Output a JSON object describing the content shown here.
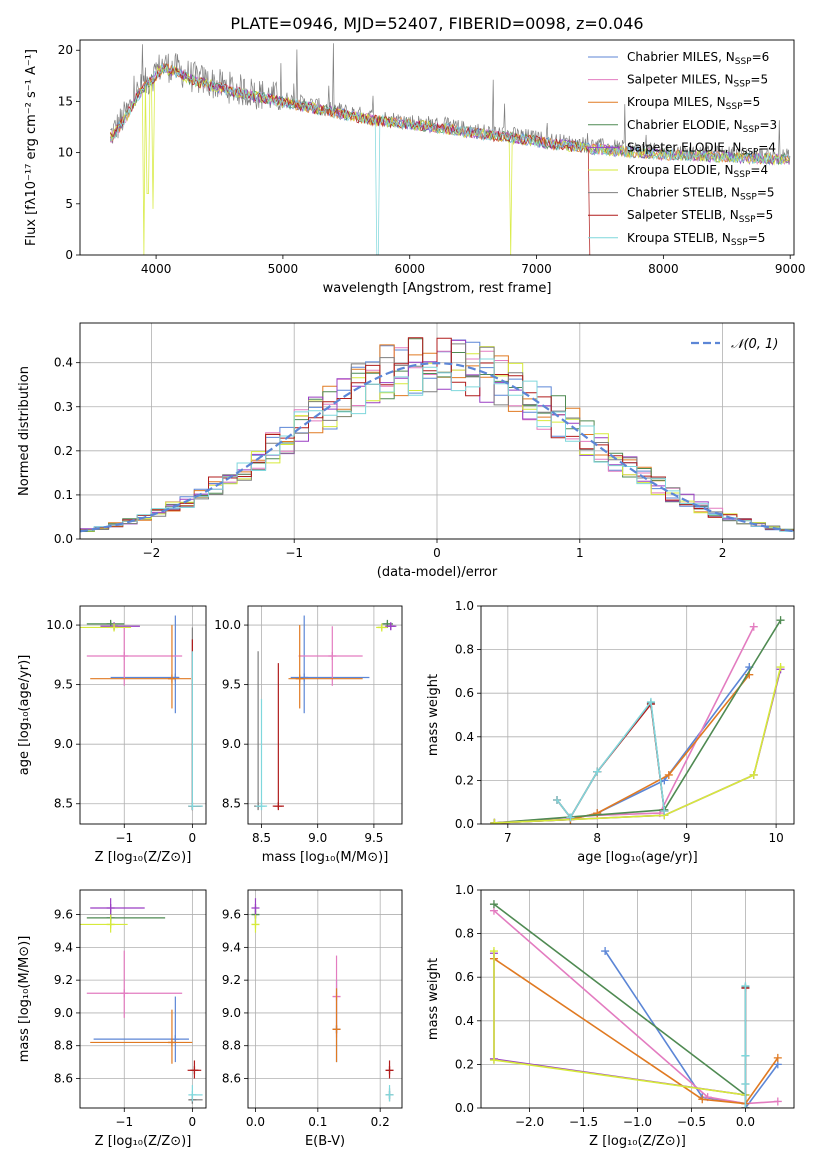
{
  "figure_title": "PLATE=0946, MJD=52407, FIBERID=0098, z=0.046",
  "colors": {
    "chabrier_miles": "#5c86d6",
    "salpeter_miles": "#e37cc0",
    "kroupa_miles": "#e07a22",
    "chabrier_elodie": "#4f8a52",
    "salpeter_elodie": "#9a3fc4",
    "kroupa_elodie": "#d6ea3a",
    "chabrier_stelib": "#7f7f7f",
    "salpeter_stelib": "#b01c1c",
    "kroupa_stelib": "#7fd7dc",
    "gauss": "#5c86d6",
    "grid": "#b0b0b0"
  },
  "chart_data": [
    {
      "id": "spectrum",
      "type": "line",
      "xlabel": "wavelength [Angstrom, rest frame]",
      "ylabel": "Flux [fλ10⁻¹⁷ erg cm⁻² s⁻¹ A⁻¹]",
      "xlim": [
        3400,
        9030
      ],
      "ylim": [
        0,
        21
      ],
      "xticks": [
        4000,
        5000,
        6000,
        7000,
        8000,
        9000
      ],
      "yticks": [
        0,
        5,
        10,
        15,
        20
      ],
      "grid": false,
      "legend_position": "top-right",
      "legend": [
        {
          "label": "Chabrier MILES, N",
          "sub": "SSP",
          "eq": "=6"
        },
        {
          "label": "Salpeter MILES, N",
          "sub": "SSP",
          "eq": "=5"
        },
        {
          "label": "Kroupa MILES, N",
          "sub": "SSP",
          "eq": "=5"
        },
        {
          "label": "Chabrier ELODIE, N",
          "sub": "SSP",
          "eq": "=3"
        },
        {
          "label": "Salpeter ELODIE, N",
          "sub": "SSP",
          "eq": "=4"
        },
        {
          "label": "Kroupa ELODIE, N",
          "sub": "SSP",
          "eq": "=4"
        },
        {
          "label": "Chabrier STELIB, N",
          "sub": "SSP",
          "eq": "=5"
        },
        {
          "label": "Salpeter STELIB, N",
          "sub": "SSP",
          "eq": "=5"
        },
        {
          "label": "Kroupa STELIB, N",
          "sub": "SSP",
          "eq": "=5"
        }
      ],
      "envelope": [
        [
          3650,
          11.8
        ],
        [
          3750,
          13.5
        ],
        [
          3850,
          15.8
        ],
        [
          3950,
          17.2
        ],
        [
          4050,
          18.6
        ],
        [
          4150,
          18.2
        ],
        [
          4300,
          17.3
        ],
        [
          4500,
          16.6
        ],
        [
          4700,
          16.0
        ],
        [
          4900,
          15.5
        ],
        [
          5100,
          15.0
        ],
        [
          5300,
          14.5
        ],
        [
          5500,
          14.0
        ],
        [
          5700,
          13.5
        ],
        [
          5900,
          13.2
        ],
        [
          6100,
          12.9
        ],
        [
          6300,
          12.6
        ],
        [
          6500,
          12.2
        ],
        [
          6700,
          11.9
        ],
        [
          6900,
          11.6
        ],
        [
          7100,
          11.2
        ],
        [
          7300,
          10.9
        ],
        [
          7420,
          10.7
        ],
        [
          7600,
          10.5
        ],
        [
          7800,
          10.3
        ],
        [
          8000,
          10.1
        ],
        [
          8200,
          10.0
        ],
        [
          8400,
          9.9
        ],
        [
          8600,
          9.8
        ],
        [
          8800,
          9.7
        ],
        [
          9000,
          9.6
        ]
      ],
      "dips": [
        {
          "series": "kroupa_elodie",
          "at": 3905,
          "to": 0
        },
        {
          "series": "kroupa_elodie",
          "at": 3935,
          "to": 6
        },
        {
          "series": "kroupa_elodie",
          "at": 3975,
          "to": 4.5
        },
        {
          "series": "kroupa_stelib",
          "at": 5745,
          "to": 0
        },
        {
          "series": "kroupa_elodie",
          "at": 6795,
          "to": 0
        },
        {
          "series": "salpeter_stelib",
          "at": 7420,
          "to": 0
        }
      ]
    },
    {
      "id": "residuals",
      "type": "step",
      "xlabel": "(data-model)/error",
      "ylabel": "Normed distribution",
      "xlim": [
        -2.5,
        2.5
      ],
      "ylim": [
        0,
        0.49
      ],
      "xticks": [
        -2,
        -1,
        0,
        1,
        2
      ],
      "yticks": [
        0.0,
        0.1,
        0.2,
        0.3,
        0.4
      ],
      "grid": true,
      "legend_position": "top-right",
      "legend_label": "𝒩(0, 1)",
      "bin_width": 0.1
    },
    {
      "id": "age_vs_Z",
      "type": "errorbar",
      "xlabel": "Z [log₁₀(Z/Z⊙)]",
      "ylabel": "age  [log₁₀(age/yr)]",
      "xlim": [
        -1.65,
        0.2
      ],
      "ylim": [
        8.33,
        10.16
      ],
      "xticks": [
        -1,
        0
      ],
      "yticks": [
        8.5,
        9.0,
        9.5,
        10.0
      ],
      "grid": true,
      "points": [
        {
          "s": "chabrier_miles",
          "x": -0.25,
          "y": 9.56,
          "xl": 0.95,
          "xh": 0.05,
          "yl": 0.3,
          "yh": 0.52
        },
        {
          "s": "salpeter_miles",
          "x": -1.0,
          "y": 9.74,
          "xl": 0.55,
          "xh": 0.85,
          "yl": 0.25,
          "yh": 0.25
        },
        {
          "s": "kroupa_miles",
          "x": -0.3,
          "y": 9.55,
          "xl": 1.2,
          "xh": 0.28,
          "yl": 0.25,
          "yh": 0.45
        },
        {
          "s": "chabrier_elodie",
          "x": -1.2,
          "y": 10.01,
          "xl": 0.35,
          "xh": 0.2,
          "yl": 0.02,
          "yh": 0.02
        },
        {
          "s": "salpeter_elodie",
          "x": -1.15,
          "y": 9.99,
          "xl": 0.2,
          "xh": 0.38,
          "yl": 0.03,
          "yh": 0.03
        },
        {
          "s": "kroupa_elodie",
          "x": -1.15,
          "y": 9.98,
          "xl": 0.5,
          "xh": 0.25,
          "yl": 0.02,
          "yh": 0.02
        },
        {
          "s": "chabrier_stelib",
          "x": 0.0,
          "y": 8.48,
          "xl": 0.02,
          "xh": 0.15,
          "yl": 0.02,
          "yh": 1.5
        },
        {
          "s": "salpeter_stelib",
          "x": 0.0,
          "y": 8.48,
          "xl": 0.02,
          "xh": 0.12,
          "yl": 0.02,
          "yh": 1.4
        },
        {
          "s": "kroupa_stelib",
          "x": 0.0,
          "y": 8.48,
          "xl": 0.02,
          "xh": 0.15,
          "yl": 0.01,
          "yh": 1.3
        }
      ]
    },
    {
      "id": "age_vs_mass",
      "type": "errorbar",
      "xlabel": "mass [log₁₀(M/M⊙)]",
      "ylabel": "",
      "xlim": [
        8.38,
        9.75
      ],
      "ylim": [
        8.33,
        10.16
      ],
      "xticks": [
        8.5,
        9.0,
        9.5
      ],
      "yticks": [
        8.5,
        9.0,
        9.5,
        10.0
      ],
      "grid": true,
      "points": [
        {
          "s": "chabrier_miles",
          "x": 8.88,
          "y": 9.56,
          "xl": 0.12,
          "xh": 0.58,
          "yl": 0.3,
          "yh": 0.52
        },
        {
          "s": "salpeter_miles",
          "x": 9.13,
          "y": 9.74,
          "xl": 0.3,
          "xh": 0.27,
          "yl": 0.25,
          "yh": 0.25
        },
        {
          "s": "kroupa_miles",
          "x": 8.84,
          "y": 9.55,
          "xl": 0.1,
          "xh": 0.56,
          "yl": 0.25,
          "yh": 0.45
        },
        {
          "s": "chabrier_elodie",
          "x": 9.62,
          "y": 10.01,
          "xl": 0.05,
          "xh": 0.05,
          "yl": 0.02,
          "yh": 0.02
        },
        {
          "s": "salpeter_elodie",
          "x": 9.65,
          "y": 9.99,
          "xl": 0.05,
          "xh": 0.05,
          "yl": 0.03,
          "yh": 0.03
        },
        {
          "s": "kroupa_elodie",
          "x": 9.57,
          "y": 9.98,
          "xl": 0.05,
          "xh": 0.05,
          "yl": 0.02,
          "yh": 0.02
        },
        {
          "s": "chabrier_stelib",
          "x": 8.47,
          "y": 8.48,
          "xl": 0.02,
          "xh": 0.02,
          "yl": 0.02,
          "yh": 1.3
        },
        {
          "s": "salpeter_stelib",
          "x": 8.65,
          "y": 8.48,
          "xl": 0.05,
          "xh": 0.05,
          "yl": 0.02,
          "yh": 1.2
        },
        {
          "s": "kroupa_stelib",
          "x": 8.5,
          "y": 8.48,
          "xl": 0.05,
          "xh": 0.05,
          "yl": 0.01,
          "yh": 0.9
        }
      ]
    },
    {
      "id": "weight_vs_age",
      "type": "line",
      "xlabel": "age  [log₁₀(age/yr)]",
      "ylabel": "mass weight",
      "xlim": [
        6.7,
        10.2
      ],
      "ylim": [
        0,
        1.0
      ],
      "xticks": [
        7,
        8,
        9,
        10
      ],
      "yticks": [
        0.0,
        0.2,
        0.4,
        0.6,
        0.8,
        1.0
      ],
      "grid": true,
      "series": [
        {
          "s": "chabrier_miles",
          "x": [
            6.85,
            7.7,
            8.0,
            8.75,
            9.7
          ],
          "y": [
            0.005,
            0.02,
            0.05,
            0.2,
            0.72
          ]
        },
        {
          "s": "salpeter_miles",
          "x": [
            6.85,
            8.0,
            8.7,
            9.75
          ],
          "y": [
            0.005,
            0.04,
            0.05,
            0.905
          ]
        },
        {
          "s": "kroupa_miles",
          "x": [
            6.85,
            7.7,
            8.0,
            8.8,
            9.7
          ],
          "y": [
            0.005,
            0.02,
            0.05,
            0.225,
            0.685
          ]
        },
        {
          "s": "chabrier_elodie",
          "x": [
            6.85,
            8.75,
            10.05
          ],
          "y": [
            0.005,
            0.065,
            0.935
          ]
        },
        {
          "s": "salpeter_elodie",
          "x": [
            6.85,
            8.75,
            9.75,
            10.05
          ],
          "y": [
            0.005,
            0.04,
            0.225,
            0.71
          ]
        },
        {
          "s": "kroupa_elodie",
          "x": [
            6.85,
            8.75,
            9.75,
            10.05
          ],
          "y": [
            0.005,
            0.04,
            0.225,
            0.72
          ]
        },
        {
          "s": "chabrier_stelib",
          "x": [
            7.55,
            7.7,
            8.0,
            8.6,
            8.75
          ],
          "y": [
            0.11,
            0.03,
            0.24,
            0.555,
            0.06
          ]
        },
        {
          "s": "salpeter_stelib",
          "x": [
            7.55,
            7.7,
            8.0,
            8.6,
            8.75
          ],
          "y": [
            0.11,
            0.03,
            0.24,
            0.55,
            0.06
          ]
        },
        {
          "s": "kroupa_stelib",
          "x": [
            7.55,
            7.7,
            8.0,
            8.6,
            8.75
          ],
          "y": [
            0.11,
            0.03,
            0.24,
            0.56,
            0.06
          ]
        }
      ]
    },
    {
      "id": "mass_vs_Z",
      "type": "errorbar",
      "xlabel": "Z [log₁₀(Z/Z⊙)]",
      "ylabel": "mass [log₁₀(M/M⊙)]",
      "xlim": [
        -1.65,
        0.2
      ],
      "ylim": [
        8.42,
        9.75
      ],
      "xticks": [
        -1,
        0
      ],
      "yticks": [
        8.6,
        8.8,
        9.0,
        9.2,
        9.4,
        9.6
      ],
      "grid": true,
      "points": [
        {
          "s": "chabrier_miles",
          "x": -0.25,
          "y": 8.84,
          "xl": 1.2,
          "xh": 0.2,
          "yl": 0.14,
          "yh": 0.26
        },
        {
          "s": "salpeter_miles",
          "x": -1.0,
          "y": 9.12,
          "xl": 0.55,
          "xh": 0.85,
          "yl": 0.15,
          "yh": 0.26
        },
        {
          "s": "kroupa_miles",
          "x": -0.3,
          "y": 8.82,
          "xl": 1.2,
          "xh": 0.3,
          "yl": 0.13,
          "yh": 0.2
        },
        {
          "s": "chabrier_elodie",
          "x": -1.2,
          "y": 9.58,
          "xl": 0.35,
          "xh": 0.8,
          "yl": 0.05,
          "yh": 0.05
        },
        {
          "s": "salpeter_elodie",
          "x": -1.2,
          "y": 9.64,
          "xl": 0.3,
          "xh": 0.5,
          "yl": 0.06,
          "yh": 0.06
        },
        {
          "s": "kroupa_elodie",
          "x": -1.2,
          "y": 9.54,
          "xl": 0.5,
          "xh": 0.25,
          "yl": 0.05,
          "yh": 0.06
        },
        {
          "s": "chabrier_stelib",
          "x": 0.0,
          "y": 8.47,
          "xl": 0.02,
          "xh": 0.15,
          "yl": 0.01,
          "yh": 0.02
        },
        {
          "s": "salpeter_stelib",
          "x": 0.03,
          "y": 8.65,
          "xl": 0.1,
          "xh": 0.1,
          "yl": 0.05,
          "yh": 0.06
        },
        {
          "s": "kroupa_stelib",
          "x": 0.0,
          "y": 8.5,
          "xl": 0.02,
          "xh": 0.15,
          "yl": 0.04,
          "yh": 0.06
        }
      ]
    },
    {
      "id": "mass_vs_ebv",
      "type": "errorbar",
      "xlabel": "E(B-V)",
      "ylabel": "",
      "xlim": [
        -0.012,
        0.235
      ],
      "ylim": [
        8.42,
        9.75
      ],
      "xticks": [
        0.0,
        0.1,
        0.2
      ],
      "yticks": [
        8.6,
        8.8,
        9.0,
        9.2,
        9.4,
        9.6
      ],
      "grid": true,
      "points": [
        {
          "s": "chabrier_miles",
          "x": 0.13,
          "y": 8.9,
          "xl": 0.0,
          "xh": 0.0,
          "yl": 0.2,
          "yh": 0.3
        },
        {
          "s": "salpeter_miles",
          "x": 0.13,
          "y": 9.1,
          "xl": 0.0,
          "xh": 0.0,
          "yl": 0.25,
          "yh": 0.25
        },
        {
          "s": "kroupa_miles",
          "x": 0.13,
          "y": 8.9,
          "xl": 0.0,
          "xh": 0.0,
          "yl": 0.2,
          "yh": 0.25
        },
        {
          "s": "chabrier_elodie",
          "x": 0.0,
          "y": 9.6,
          "xl": 0.0,
          "xh": 0.0,
          "yl": 0.05,
          "yh": 0.05
        },
        {
          "s": "salpeter_elodie",
          "x": 0.0,
          "y": 9.64,
          "xl": 0.0,
          "xh": 0.0,
          "yl": 0.06,
          "yh": 0.06
        },
        {
          "s": "kroupa_elodie",
          "x": 0.0,
          "y": 9.54,
          "xl": 0.0,
          "xh": 0.0,
          "yl": 0.05,
          "yh": 0.06
        },
        {
          "s": "chabrier_stelib",
          "x": 0.215,
          "y": 8.5,
          "xl": 0.0,
          "xh": 0.0,
          "yl": 0.04,
          "yh": 0.04
        },
        {
          "s": "salpeter_stelib",
          "x": 0.215,
          "y": 8.65,
          "xl": 0.0,
          "xh": 0.0,
          "yl": 0.05,
          "yh": 0.06
        },
        {
          "s": "kroupa_stelib",
          "x": 0.215,
          "y": 8.5,
          "xl": 0.0,
          "xh": 0.0,
          "yl": 0.04,
          "yh": 0.06
        }
      ]
    },
    {
      "id": "weight_vs_Z",
      "type": "line",
      "xlabel": "Z [log₁₀(Z/Z⊙)]",
      "ylabel": "mass weight",
      "xlim": [
        -2.45,
        0.45
      ],
      "ylim": [
        0,
        1.0
      ],
      "xticks": [
        -2.0,
        -1.5,
        -1.0,
        -0.5,
        0.0
      ],
      "yticks": [
        0.0,
        0.2,
        0.4,
        0.6,
        0.8,
        1.0
      ],
      "grid": true,
      "series": [
        {
          "s": "chabrier_miles",
          "x": [
            -1.3,
            -0.4,
            0.0,
            0.0,
            0.3
          ],
          "y": [
            0.72,
            0.05,
            0.02,
            0.0,
            0.2
          ]
        },
        {
          "s": "salpeter_miles",
          "x": [
            -2.33,
            -0.35,
            0.0,
            0.3
          ],
          "y": [
            0.905,
            0.05,
            0.02,
            0.03
          ]
        },
        {
          "s": "kroupa_miles",
          "x": [
            -2.33,
            -0.4,
            0.0,
            0.3
          ],
          "y": [
            0.685,
            0.04,
            0.02,
            0.23
          ]
        },
        {
          "s": "chabrier_elodie",
          "x": [
            -2.33,
            0.0,
            0.0
          ],
          "y": [
            0.935,
            0.06,
            0.0
          ]
        },
        {
          "s": "salpeter_elodie",
          "x": [
            -2.33,
            -2.33,
            0.0,
            0.0
          ],
          "y": [
            0.71,
            0.225,
            0.06,
            0.0
          ]
        },
        {
          "s": "kroupa_elodie",
          "x": [
            -2.33,
            -2.33,
            0.0,
            0.0
          ],
          "y": [
            0.72,
            0.22,
            0.06,
            0.0
          ]
        },
        {
          "s": "chabrier_stelib",
          "x": [
            0.0,
            0.0,
            0.0,
            0.0
          ],
          "y": [
            0.0,
            0.555,
            0.24,
            0.11
          ]
        },
        {
          "s": "salpeter_stelib",
          "x": [
            0.0,
            0.0
          ],
          "y": [
            0.0,
            0.55
          ]
        },
        {
          "s": "kroupa_stelib",
          "x": [
            0.0,
            0.0,
            0.0,
            0.0
          ],
          "y": [
            0.0,
            0.56,
            0.24,
            0.11
          ]
        }
      ]
    }
  ]
}
